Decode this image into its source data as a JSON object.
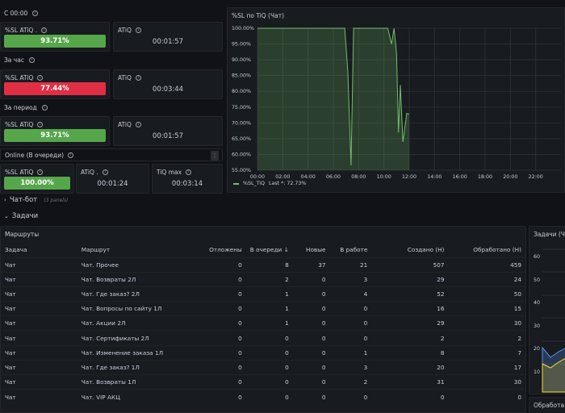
{
  "groups": {
    "c0000": "С 00:00",
    "hour": "За час",
    "period": "За период",
    "online": "Online (В очереди)"
  },
  "stats": {
    "c0000": {
      "sl_title": "%SL ATiQ .",
      "sl_value": "93.71%",
      "atiq_title": "ATiQ",
      "atiq_value": "00:01:57"
    },
    "hour": {
      "sl_title": "%SL ATiQ",
      "sl_value": "77.44%",
      "atiq_title": "ATiQ",
      "atiq_value": "00:03:44"
    },
    "period": {
      "sl_title": "%SL ATiQ",
      "sl_value": "93.71%",
      "atiq_title": "ATiQ",
      "atiq_value": "00:01:57"
    },
    "online": {
      "sl_title": "%SL ATiQ",
      "sl_value": "100.00%",
      "atiq_title": "ATiQ .",
      "atiq_value": "00:01:24",
      "tiq_title": "TiQ max",
      "tiq_value": "00:03:14"
    }
  },
  "colors": {
    "green": "#56a64b",
    "red": "#e02f44",
    "line": "#73bf69"
  },
  "sections": {
    "chatbot": "Чат-бот",
    "chatbot_sub": "(3 panels)",
    "tasks": "Задачи"
  },
  "chart_panel": {
    "title": "%SL по TiQ (Чат)",
    "legend_name": "%SL_TiQ",
    "legend_last": "Last *: 72.73%"
  },
  "chart_data": {
    "type": "line",
    "title": "%SL по TiQ (Чат)",
    "ylim": [
      55,
      100
    ],
    "y_ticks": [
      "55.00%",
      "60.00%",
      "65.00%",
      "70.00%",
      "75.00%",
      "80.00%",
      "85.00%",
      "90.00%",
      "95.00%",
      "100.00%"
    ],
    "x_ticks": [
      "00:00",
      "02:00",
      "04:00",
      "06:00",
      "08:00",
      "10:00",
      "12:00",
      "14:00",
      "16:00",
      "18:00",
      "20:00",
      "22:00"
    ],
    "series": [
      {
        "name": "%SL_TiQ",
        "x": [
          0,
          6.9,
          7.15,
          7.4,
          7.6,
          10.3,
          10.6,
          10.8,
          11.0,
          11.15,
          11.3,
          11.5,
          11.8,
          12.0
        ],
        "y": [
          100,
          100,
          86,
          56.5,
          100,
          100,
          95,
          100,
          92,
          67,
          82,
          64,
          73,
          72.73
        ]
      }
    ],
    "grid": true,
    "legend": "bottom-left"
  },
  "routes": {
    "title": "Маршруты",
    "columns": [
      "Задача",
      "Маршрут",
      "Отложены",
      "В очереди",
      "Новые",
      "В работе",
      "Создано (Н)",
      "Обработано (Н)"
    ],
    "rows": [
      [
        "Чат",
        "Чат. Прочее",
        "0",
        "8",
        "37",
        "21",
        "507",
        "459"
      ],
      [
        "Чат",
        "Чат. Возвраты 2Л",
        "0",
        "2",
        "0",
        "3",
        "29",
        "24"
      ],
      [
        "Чат",
        "Чат. Где заказ? 2Л",
        "0",
        "1",
        "0",
        "4",
        "52",
        "50"
      ],
      [
        "Чат",
        "Чат. Вопросы по сайту 1Л",
        "0",
        "1",
        "0",
        "0",
        "16",
        "15"
      ],
      [
        "Чат",
        "Чат. Акции 2Л",
        "0",
        "1",
        "0",
        "0",
        "29",
        "30"
      ],
      [
        "Чат",
        "Чат. Сертификаты 2Л",
        "0",
        "0",
        "0",
        "0",
        "2",
        "2"
      ],
      [
        "Чат",
        "Чат. Изменение заказа 1Л",
        "0",
        "0",
        "0",
        "1",
        "8",
        "7"
      ],
      [
        "Чат",
        "Чат. Где заказ? 1Л",
        "0",
        "0",
        "0",
        "3",
        "20",
        "17"
      ],
      [
        "Чат",
        "Чат. Возвраты 1Л",
        "0",
        "0",
        "0",
        "2",
        "31",
        "30"
      ],
      [
        "Чат",
        "Чат. VIP АКЦ",
        "0",
        "0",
        "0",
        "0",
        "0",
        "0"
      ]
    ]
  },
  "side_panel": {
    "title": "Задачи (Ча",
    "y_ticks": [
      "60",
      "50",
      "40",
      "30",
      "20",
      "10"
    ],
    "bottom_title": "Обработа"
  }
}
